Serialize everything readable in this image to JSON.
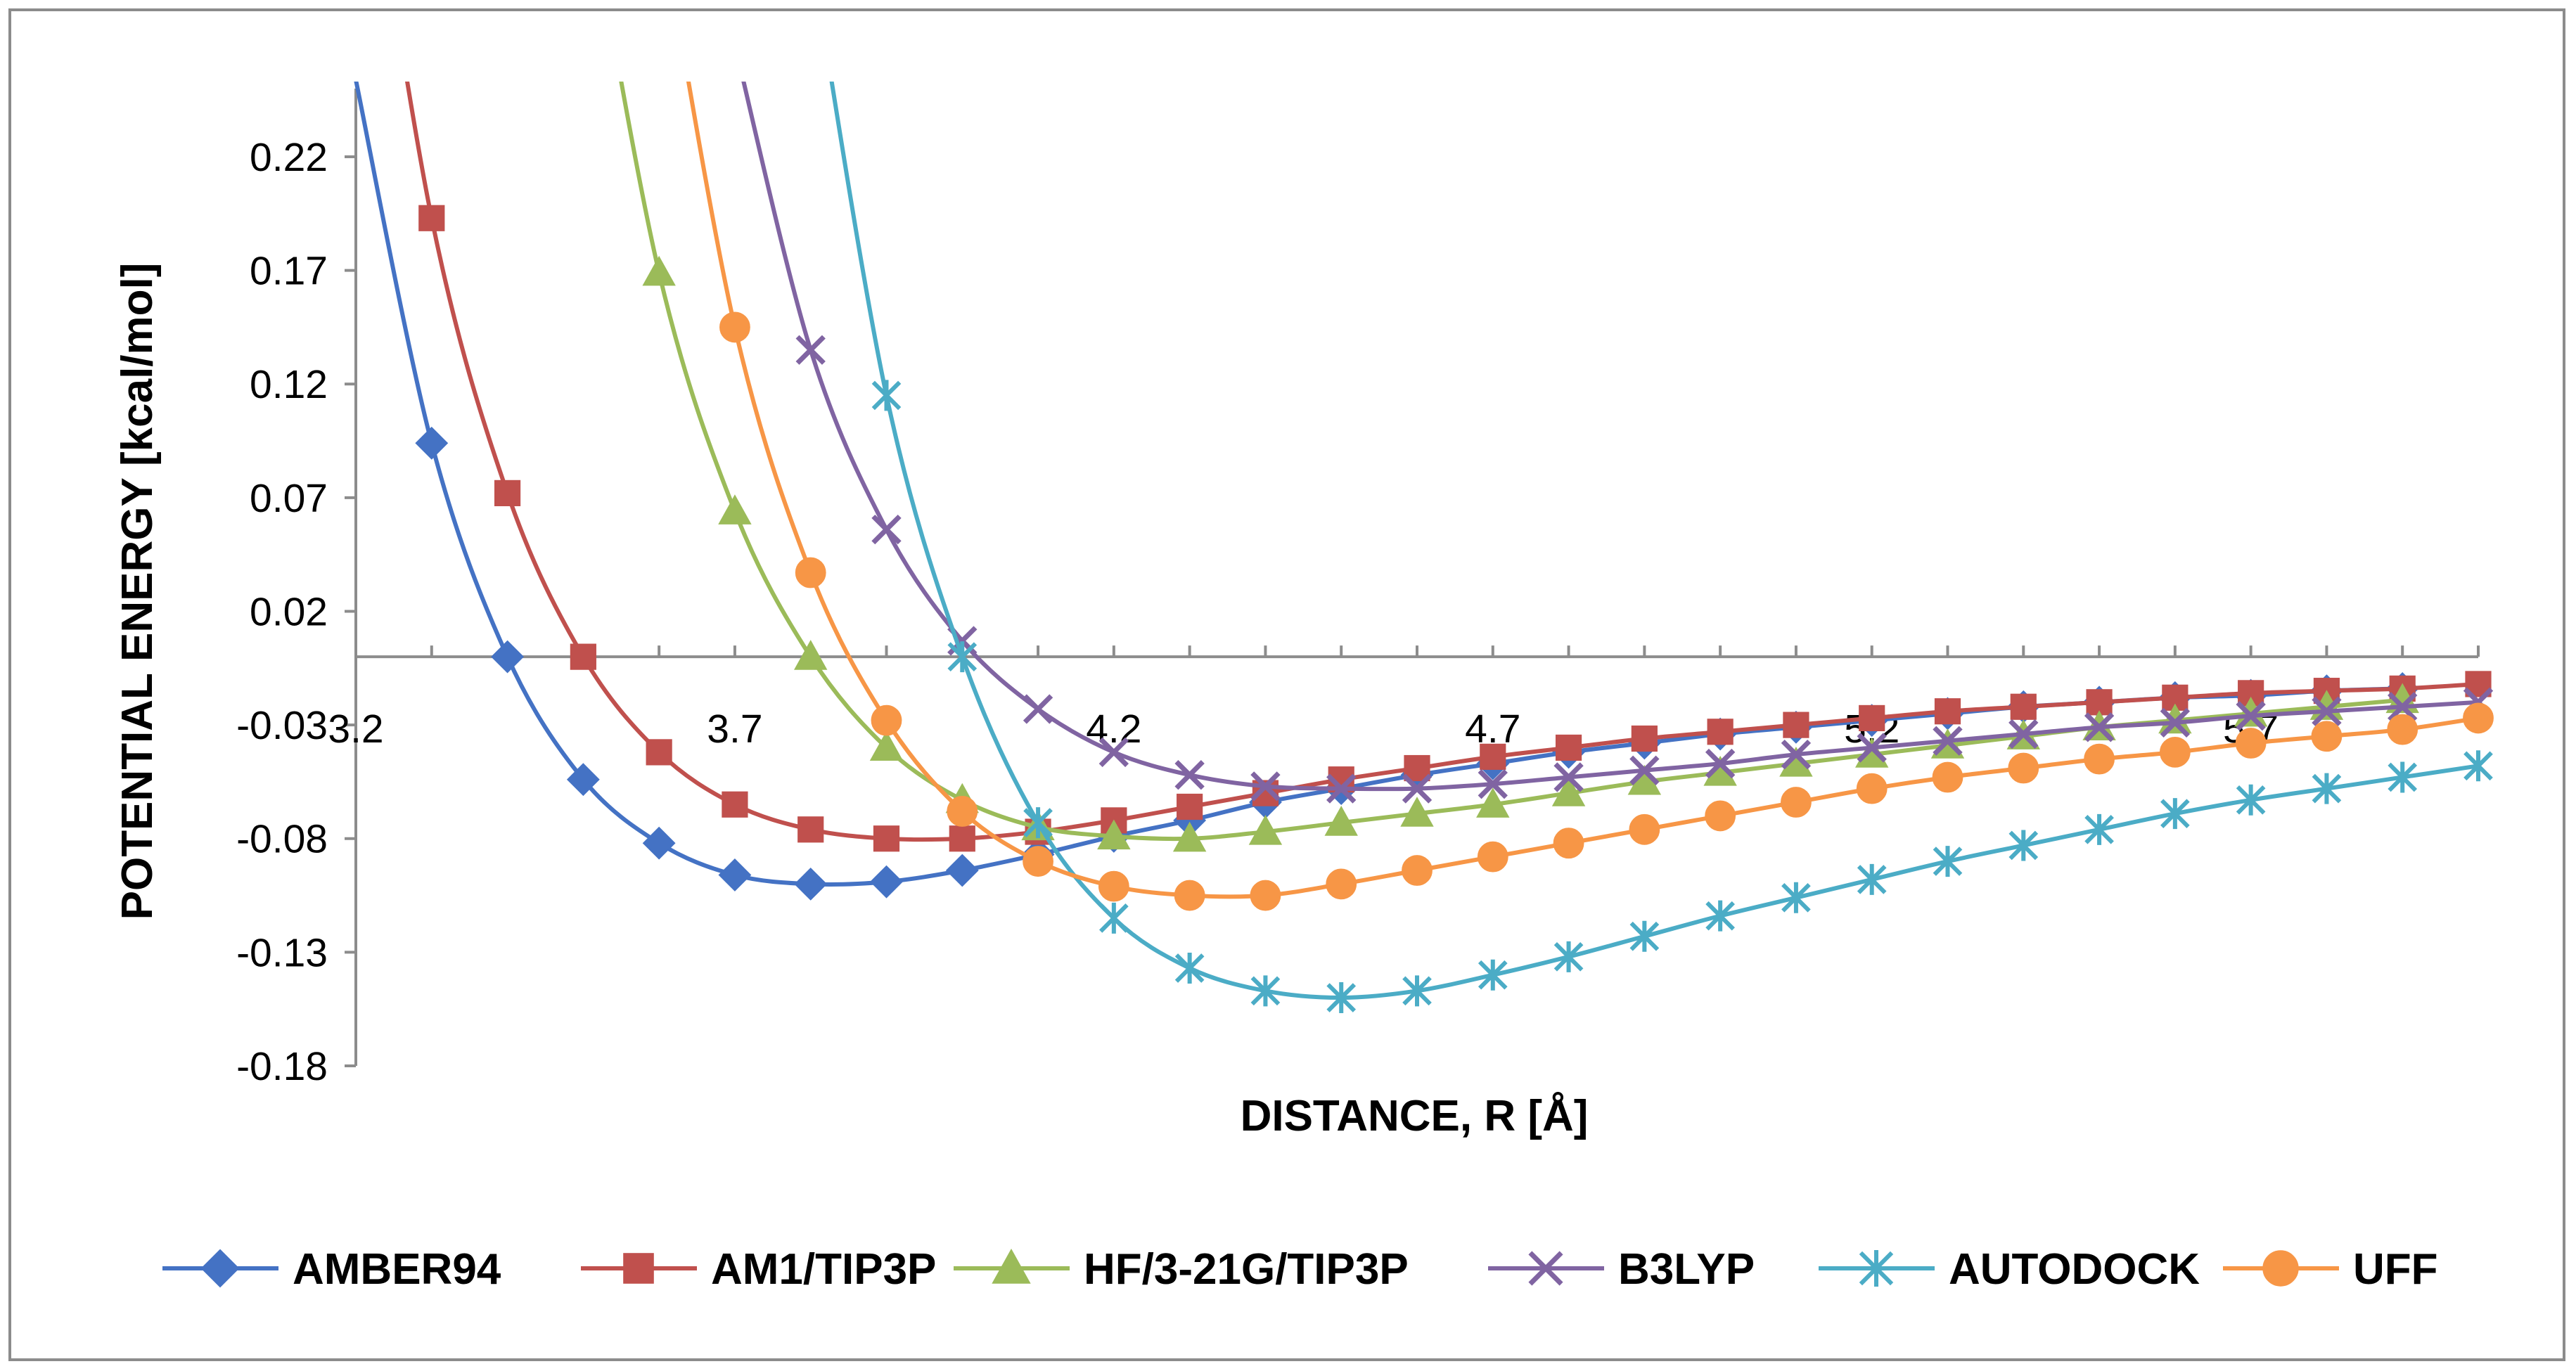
{
  "chart_data": {
    "type": "line",
    "title": "",
    "xlabel": "DISTANCE, R [Å]",
    "ylabel": "POTENTIAL ENERGY [kcal/mol]",
    "xlim": [
      3.2,
      6.0
    ],
    "ylim": [
      -0.18,
      0.25
    ],
    "x_ticks": [
      "3.2",
      "3.7",
      "4.2",
      "4.7",
      "5.2",
      "5.7"
    ],
    "y_ticks": [
      "0.22",
      "0.17",
      "0.12",
      "0.07",
      "0.02",
      "-0.03",
      "-0.08",
      "-0.13",
      "-0.18"
    ],
    "legend_position": "bottom",
    "grid": false,
    "series": [
      {
        "name": "AMBER94",
        "color": "#4472C4",
        "marker": "diamond",
        "x": [
          3.3,
          3.4,
          3.5,
          3.6,
          3.7,
          3.8,
          3.9,
          4.0,
          4.1,
          4.2,
          4.3,
          4.4,
          4.5,
          4.6,
          4.7,
          4.8,
          4.9,
          5.0,
          5.1,
          5.2,
          5.3,
          5.4,
          5.5,
          5.6,
          5.7,
          5.8,
          5.9
        ],
        "y": [
          0.094,
          0.0,
          -0.054,
          -0.082,
          -0.096,
          -0.1,
          -0.099,
          -0.094,
          -0.087,
          -0.079,
          -0.072,
          -0.064,
          -0.058,
          -0.052,
          -0.047,
          -0.042,
          -0.038,
          -0.034,
          -0.031,
          -0.028,
          -0.025,
          -0.022,
          -0.02,
          -0.018,
          -0.017,
          -0.015,
          -0.014
        ]
      },
      {
        "name": "AM1/TIP3P",
        "color": "#C0504D",
        "marker": "square",
        "x": [
          3.3,
          3.4,
          3.5,
          3.6,
          3.7,
          3.8,
          3.9,
          4.0,
          4.1,
          4.2,
          4.3,
          4.4,
          4.5,
          4.6,
          4.7,
          4.8,
          4.9,
          5.0,
          5.1,
          5.2,
          5.3,
          5.4,
          5.5,
          5.6,
          5.7,
          5.8,
          5.9,
          6.0
        ],
        "y": [
          0.193,
          0.072,
          0.0,
          -0.042,
          -0.065,
          -0.076,
          -0.08,
          -0.08,
          -0.077,
          -0.072,
          -0.066,
          -0.06,
          -0.054,
          -0.049,
          -0.044,
          -0.04,
          -0.036,
          -0.033,
          -0.03,
          -0.027,
          -0.024,
          -0.022,
          -0.02,
          -0.018,
          -0.016,
          -0.015,
          -0.014,
          -0.012
        ]
      },
      {
        "name": "HF/3-21G/TIP3P",
        "color": "#9BBB59",
        "marker": "triangle",
        "x": [
          3.6,
          3.7,
          3.8,
          3.9,
          4.0,
          4.1,
          4.2,
          4.3,
          4.4,
          4.5,
          4.6,
          4.7,
          4.8,
          4.9,
          5.0,
          5.1,
          5.2,
          5.3,
          5.4,
          5.5,
          5.6,
          5.7,
          5.8,
          5.9
        ],
        "y": [
          0.169,
          0.064,
          0.0,
          -0.04,
          -0.063,
          -0.075,
          -0.079,
          -0.08,
          -0.077,
          -0.073,
          -0.069,
          -0.065,
          -0.06,
          -0.055,
          -0.051,
          -0.047,
          -0.043,
          -0.039,
          -0.035,
          -0.031,
          -0.028,
          -0.025,
          -0.022,
          -0.019
        ]
      },
      {
        "name": "B3LYP",
        "color": "#8064A2",
        "marker": "x",
        "x": [
          3.8,
          3.9,
          4.0,
          4.1,
          4.2,
          4.3,
          4.4,
          4.5,
          4.6,
          4.7,
          4.8,
          4.9,
          5.0,
          5.1,
          5.2,
          5.3,
          5.4,
          5.5,
          5.6,
          5.7,
          5.8,
          5.9,
          6.0
        ],
        "y": [
          0.135,
          0.056,
          0.007,
          -0.023,
          -0.042,
          -0.052,
          -0.057,
          -0.058,
          -0.058,
          -0.056,
          -0.053,
          -0.05,
          -0.047,
          -0.043,
          -0.04,
          -0.037,
          -0.034,
          -0.031,
          -0.029,
          -0.026,
          -0.024,
          -0.022,
          -0.02
        ]
      },
      {
        "name": "AUTODOCK",
        "color": "#4BACC6",
        "marker": "star",
        "x": [
          3.9,
          4.0,
          4.1,
          4.2,
          4.3,
          4.4,
          4.5,
          4.6,
          4.7,
          4.8,
          4.9,
          5.0,
          5.1,
          5.2,
          5.3,
          5.4,
          5.5,
          5.6,
          5.7,
          5.8,
          5.9,
          6.0
        ],
        "y": [
          0.115,
          0.0,
          -0.073,
          -0.115,
          -0.137,
          -0.147,
          -0.15,
          -0.147,
          -0.14,
          -0.132,
          -0.123,
          -0.114,
          -0.106,
          -0.098,
          -0.09,
          -0.083,
          -0.076,
          -0.069,
          -0.063,
          -0.058,
          -0.053,
          -0.048
        ]
      },
      {
        "name": "UFF",
        "color": "#F79646",
        "marker": "circle",
        "x": [
          3.7,
          3.8,
          3.9,
          4.0,
          4.1,
          4.2,
          4.3,
          4.4,
          4.5,
          4.6,
          4.7,
          4.8,
          4.9,
          5.0,
          5.1,
          5.2,
          5.3,
          5.4,
          5.5,
          5.6,
          5.7,
          5.8,
          5.9,
          6.0
        ],
        "y": [
          0.145,
          0.037,
          -0.028,
          -0.068,
          -0.09,
          -0.101,
          -0.105,
          -0.105,
          -0.1,
          -0.094,
          -0.088,
          -0.082,
          -0.076,
          -0.07,
          -0.064,
          -0.058,
          -0.053,
          -0.049,
          -0.045,
          -0.042,
          -0.038,
          -0.035,
          -0.032,
          -0.027
        ]
      }
    ]
  }
}
